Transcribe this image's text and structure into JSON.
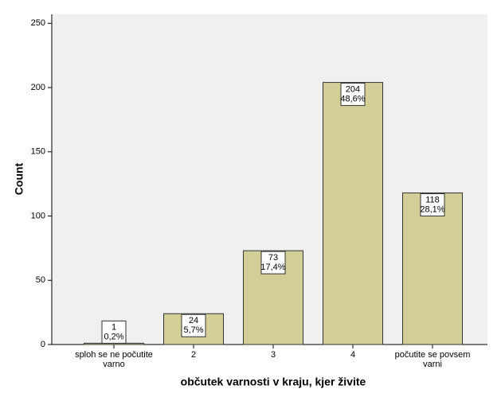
{
  "chart_data": {
    "type": "bar",
    "categories": [
      "sploh se ne počutite varno",
      "2",
      "3",
      "4",
      "počutite se povsem varni"
    ],
    "values": [
      1,
      24,
      73,
      204,
      118
    ],
    "percent_labels": [
      "0,2%",
      "5,7%",
      "17,4%",
      "48,6%",
      "28,1%"
    ],
    "color": "#d3ce97",
    "x_label": "občutek varnosti v kraju, kjer živite",
    "y_label": "Count",
    "ylim": [
      0,
      257
    ],
    "yticks": [
      0,
      50,
      100,
      150,
      200,
      250
    ]
  }
}
